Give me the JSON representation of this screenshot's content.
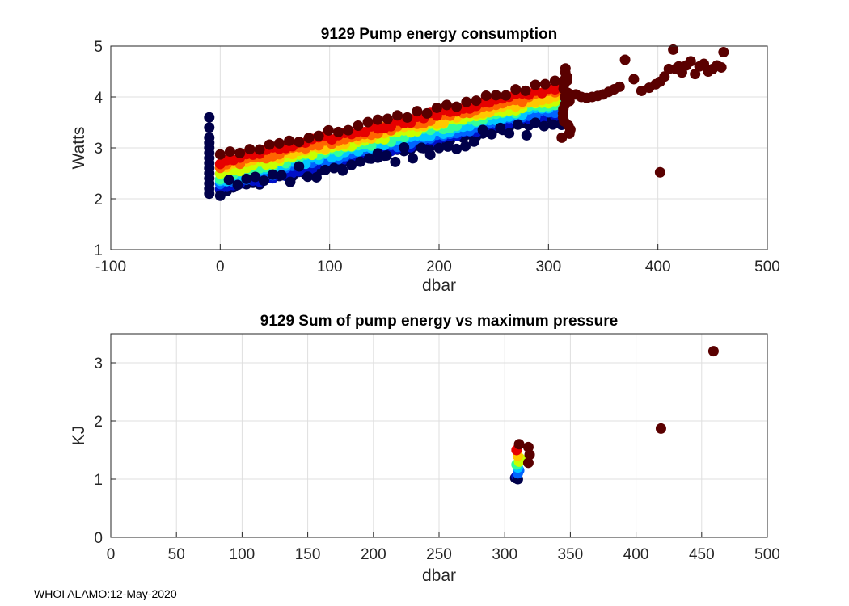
{
  "footer": "WHOI ALAMO:12-May-2020",
  "colormap": [
    "#00004a",
    "#0010c8",
    "#0064ff",
    "#00c8ff",
    "#33ff99",
    "#c8ff00",
    "#ffc800",
    "#ff6400",
    "#e60000",
    "#5a0000"
  ],
  "chart_data": [
    {
      "type": "scatter",
      "title": "9129 Pump energy consumption",
      "xlabel": "dbar",
      "ylabel": "Watts",
      "xlim": [
        -100,
        500
      ],
      "ylim": [
        1,
        5
      ],
      "xticks": [
        -100,
        0,
        100,
        200,
        300,
        400,
        500
      ],
      "yticks": [
        1,
        2,
        3,
        4,
        5
      ],
      "grid": true,
      "description": "Colored by profile number (blue=early, dark red=late); roughly linear trend from ~2.3 W at 0 dbar to ~4 W at 310 dbar; surface cluster at -10 dbar spanning 2.1-3.6 W",
      "series": [
        {
          "name": "surface-cluster",
          "x": [
            -10,
            -10,
            -10,
            -10,
            -10,
            -10,
            -10,
            -10,
            -10,
            -10,
            -10,
            -10,
            -10,
            -10
          ],
          "y": [
            2.1,
            2.2,
            2.3,
            2.4,
            2.5,
            2.6,
            2.7,
            2.8,
            2.9,
            3.0,
            3.1,
            3.2,
            3.4,
            3.6
          ]
        },
        {
          "name": "late-profiles-deep",
          "x": [
            318,
            325,
            330,
            335,
            340,
            345,
            350,
            355,
            360,
            365,
            370,
            378,
            385,
            392,
            398,
            402,
            406,
            410,
            414,
            416,
            419,
            422,
            426,
            430,
            434,
            438,
            442,
            446,
            450,
            454,
            458,
            460
          ],
          "y": [
            4.0,
            4.05,
            4.0,
            3.98,
            4.0,
            4.02,
            4.05,
            4.1,
            4.15,
            4.2,
            4.73,
            4.35,
            4.12,
            4.18,
            4.25,
            4.3,
            4.4,
            4.55,
            4.93,
            4.55,
            4.6,
            4.48,
            4.62,
            4.7,
            4.45,
            4.6,
            4.65,
            4.5,
            4.55,
            4.62,
            4.58,
            4.88
          ]
        },
        {
          "name": "outlier",
          "x": [
            402
          ],
          "y": [
            2.52
          ]
        }
      ]
    },
    {
      "type": "scatter",
      "title": "9129 Sum of pump energy vs maximum pressure",
      "xlabel": "dbar",
      "ylabel": "KJ",
      "xlim": [
        0,
        500
      ],
      "ylim": [
        0,
        3.5
      ],
      "xticks": [
        0,
        50,
        100,
        150,
        200,
        250,
        300,
        350,
        400,
        450,
        500
      ],
      "yticks": [
        0,
        1,
        2,
        3
      ],
      "grid": true,
      "series": [
        {
          "name": "profiles",
          "x": [
            308,
            309,
            310,
            310,
            311,
            310,
            309,
            311,
            312,
            310,
            309,
            311,
            318,
            319,
            318
          ],
          "y": [
            1.02,
            1.05,
            1.0,
            1.1,
            1.15,
            1.2,
            1.25,
            1.3,
            1.35,
            1.4,
            1.5,
            1.6,
            1.28,
            1.42,
            1.55
          ]
        },
        {
          "name": "late",
          "x": [
            419,
            459
          ],
          "y": [
            1.87,
            3.2
          ]
        }
      ]
    }
  ]
}
